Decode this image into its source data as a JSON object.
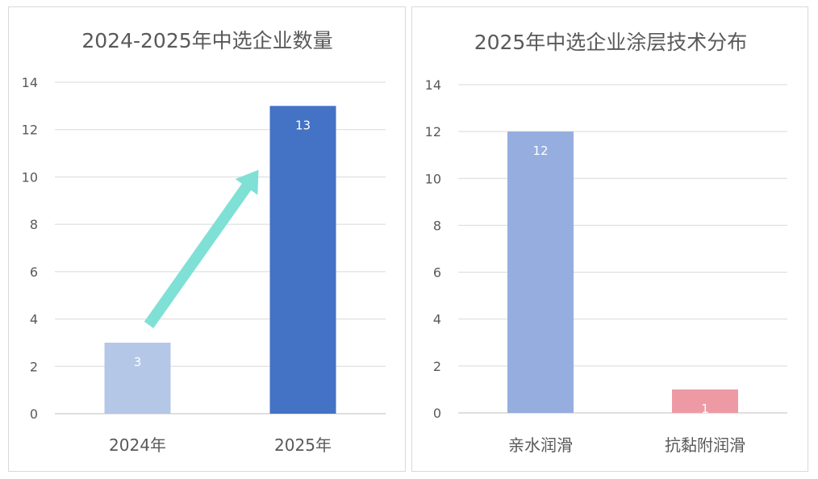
{
  "chart_data": [
    {
      "type": "bar",
      "title": "2024-2025年中选企业数量",
      "categories": [
        "2024年",
        "2025年"
      ],
      "values": [
        3,
        13
      ],
      "data_labels": [
        "3",
        "13"
      ],
      "bar_colors": [
        "#b4c7e7",
        "#4472c4"
      ],
      "ylim": [
        0,
        14
      ],
      "yticks": [
        "0",
        "2",
        "4",
        "6",
        "8",
        "10",
        "12",
        "14"
      ],
      "grid": true,
      "annotation": {
        "type": "arrow",
        "color": "#7fe0d5",
        "description": "upward trend arrow from 2024年 bar to 2025年 bar"
      }
    },
    {
      "type": "bar",
      "title": "2025年中选企业涂层技术分布",
      "categories": [
        "亲水润滑",
        "抗黏附润滑"
      ],
      "values": [
        12,
        1
      ],
      "data_labels": [
        "12",
        "1"
      ],
      "bar_colors": [
        "#95aedf",
        "#ee9aa4"
      ],
      "ylim": [
        0,
        14
      ],
      "yticks": [
        "0",
        "2",
        "4",
        "6",
        "8",
        "10",
        "12",
        "14"
      ],
      "grid": true
    }
  ]
}
